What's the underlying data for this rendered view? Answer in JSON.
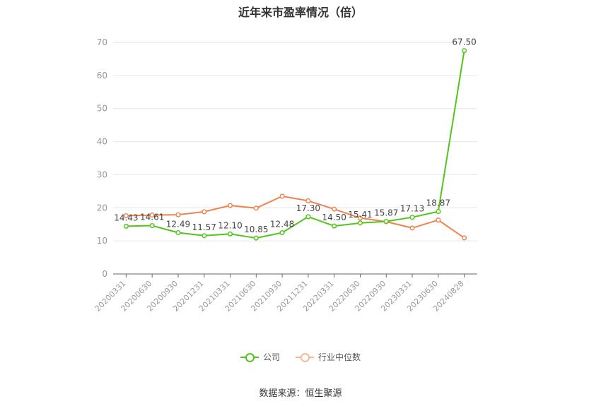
{
  "chart_data": {
    "type": "line",
    "title": "近年来市盈率情况（倍）",
    "source": "数据来源：恒生聚源",
    "x": [
      "20200331",
      "20200630",
      "20200930",
      "20201231",
      "20210331",
      "20210630",
      "20210930",
      "20211231",
      "20220331",
      "20220630",
      "20220930",
      "20230331",
      "20230630",
      "20240828"
    ],
    "ylim": [
      0,
      70
    ],
    "yticks": [
      0,
      10,
      20,
      30,
      40,
      50,
      60,
      70
    ],
    "grid": true,
    "legend_position": "bottom",
    "series": [
      {
        "name": "公司",
        "color": "#52c41a",
        "values": [
          14.43,
          14.61,
          12.49,
          11.57,
          12.1,
          10.85,
          12.48,
          17.3,
          14.5,
          15.41,
          15.87,
          17.13,
          18.87,
          67.5
        ],
        "labels": [
          "14.43",
          "14.61",
          "12.49",
          "11.57",
          "12.10",
          "10.85",
          "12.48",
          "17.30",
          "14.50",
          "15.41",
          "15.87",
          "17.13",
          "18.87",
          "67.50"
        ]
      },
      {
        "name": "行业中位数",
        "color": "#f0824e",
        "values": [
          17.6,
          17.8,
          17.9,
          18.8,
          20.7,
          19.9,
          23.5,
          22.1,
          19.6,
          16.9,
          15.8,
          13.9,
          16.3,
          10.9
        ]
      }
    ]
  }
}
